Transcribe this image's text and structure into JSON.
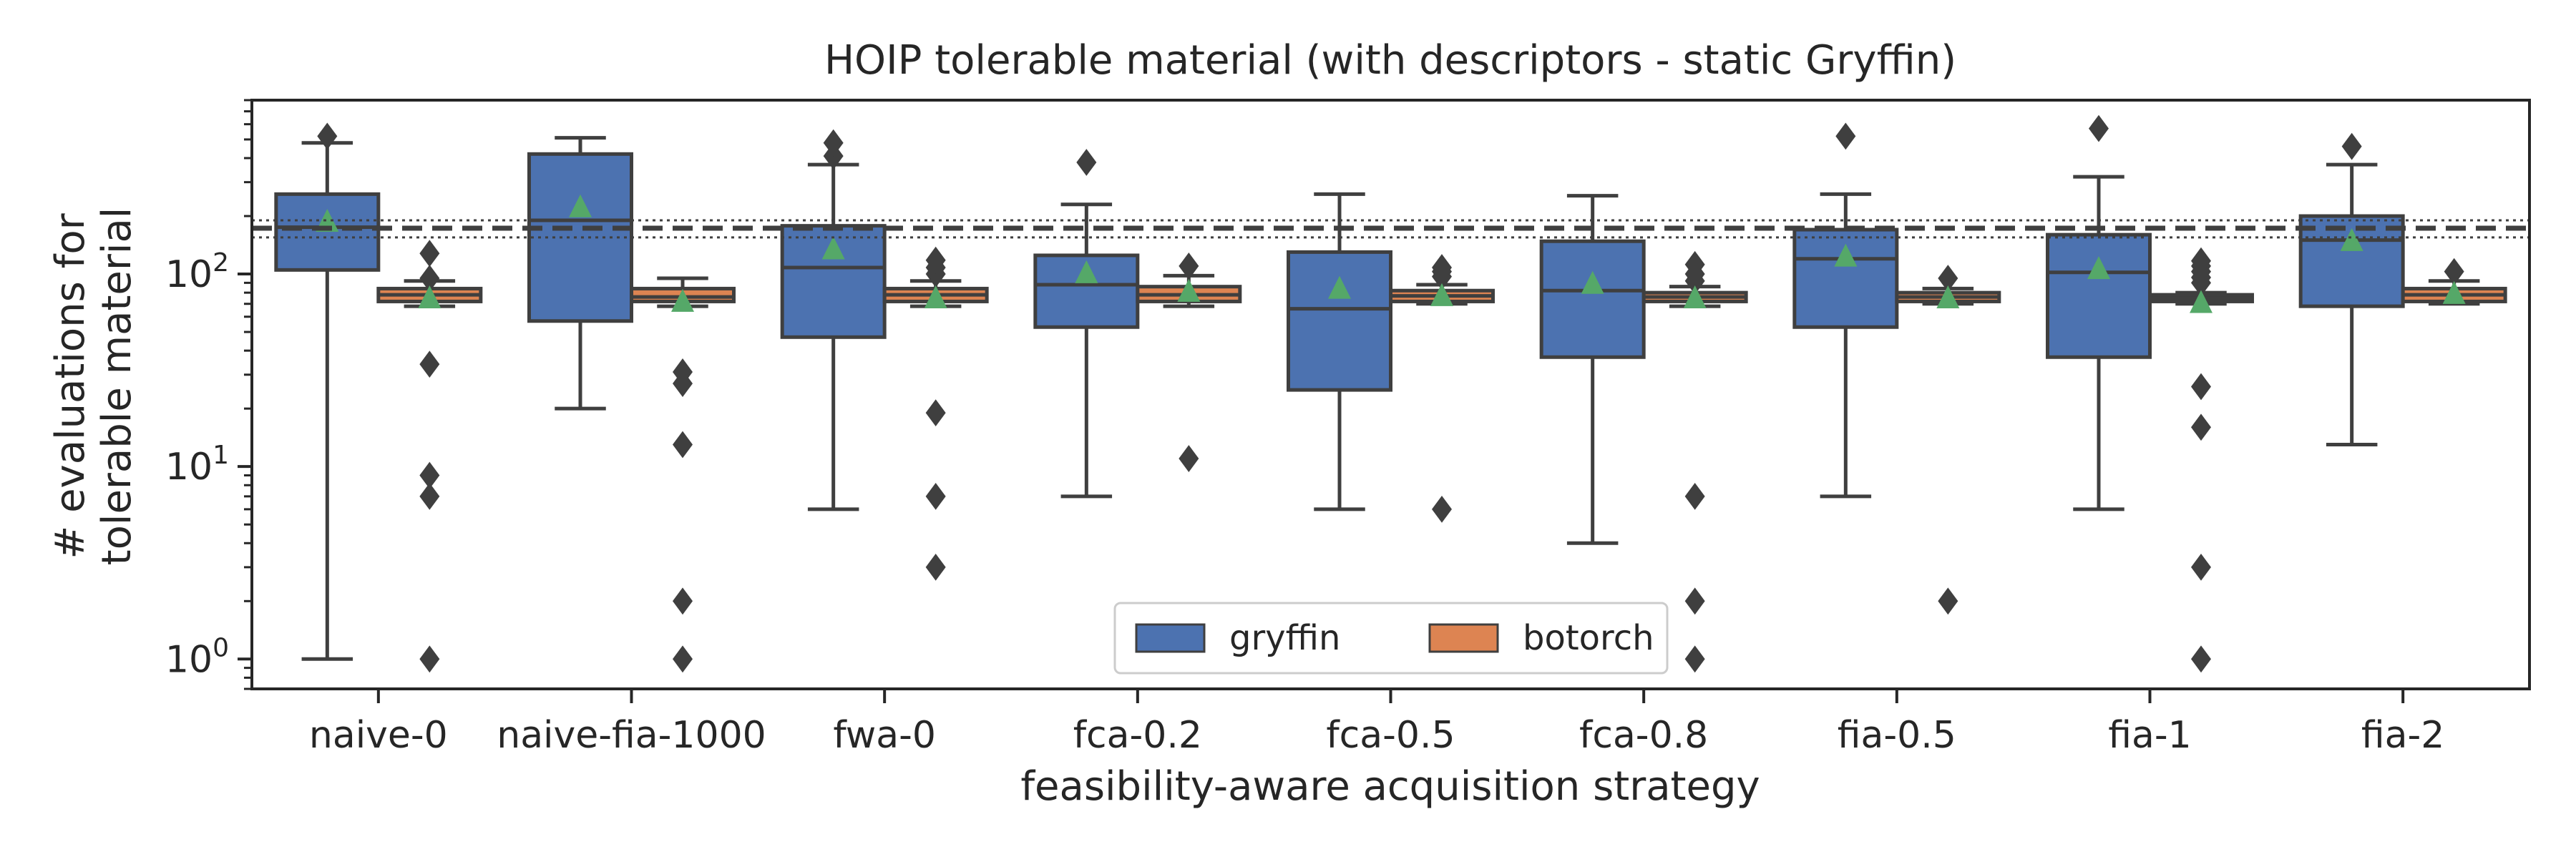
{
  "chart_data": {
    "type": "box",
    "title": "HOIP tolerable material (with descriptors - static Gryffin)",
    "xlabel": "feasibility-aware acquisition strategy",
    "ylabel": [
      "# evaluations for",
      "tolerable material"
    ],
    "yscale": "log",
    "ylim": [
      0.7,
      800
    ],
    "yticks": [
      {
        "value": 1,
        "base": "10",
        "exp": "0"
      },
      {
        "value": 10,
        "base": "10",
        "exp": "1"
      },
      {
        "value": 100,
        "base": "10",
        "exp": "2"
      }
    ],
    "categories": [
      "naive-0",
      "naive-fia-1000",
      "fwa-0",
      "fca-0.2",
      "fca-0.5",
      "fca-0.8",
      "fia-0.5",
      "fia-1",
      "fia-2"
    ],
    "series": [
      {
        "name": "gryffin",
        "color": "#4c72b0",
        "boxes": [
          {
            "q1": 105,
            "median": 175,
            "q3": 260,
            "whislo": 1,
            "whishi": 480,
            "mean": 185,
            "fliers": [
              520
            ]
          },
          {
            "q1": 57,
            "median": 190,
            "q3": 420,
            "whislo": 20,
            "whishi": 510,
            "mean": 220,
            "fliers": []
          },
          {
            "q1": 47,
            "median": 108,
            "q3": 178,
            "whislo": 6,
            "whishi": 370,
            "mean": 133,
            "fliers": [
              410,
              480
            ]
          },
          {
            "q1": 53,
            "median": 88,
            "q3": 125,
            "whislo": 7,
            "whishi": 230,
            "mean": 100,
            "fliers": [
              380
            ]
          },
          {
            "q1": 25,
            "median": 66,
            "q3": 130,
            "whislo": 6,
            "whishi": 260,
            "mean": 83,
            "fliers": []
          },
          {
            "q1": 37,
            "median": 82,
            "q3": 148,
            "whislo": 4,
            "whishi": 255,
            "mean": 88,
            "fliers": []
          },
          {
            "q1": 53,
            "median": 120,
            "q3": 170,
            "whislo": 7,
            "whishi": 260,
            "mean": 122,
            "fliers": [
              520
            ]
          },
          {
            "q1": 37,
            "median": 102,
            "q3": 160,
            "whislo": 6,
            "whishi": 320,
            "mean": 105,
            "fliers": [
              570
            ]
          },
          {
            "q1": 68,
            "median": 150,
            "q3": 200,
            "whislo": 13,
            "whishi": 370,
            "mean": 147,
            "fliers": [
              460
            ]
          }
        ]
      },
      {
        "name": "botorch",
        "color": "#dd8452",
        "boxes": [
          {
            "q1": 72,
            "median": 78,
            "q3": 84,
            "whislo": 68,
            "whishi": 92,
            "mean": 74,
            "fliers": [
              1,
              7,
              9,
              34,
              95,
              128
            ]
          },
          {
            "q1": 72,
            "median": 76,
            "q3": 84,
            "whislo": 68,
            "whishi": 95,
            "mean": 71,
            "fliers": [
              1,
              2,
              13,
              27,
              31
            ]
          },
          {
            "q1": 72,
            "median": 78,
            "q3": 84,
            "whislo": 68,
            "whishi": 92,
            "mean": 74,
            "fliers": [
              3,
              7,
              19,
              100,
              108,
              118
            ]
          },
          {
            "q1": 72,
            "median": 78,
            "q3": 86,
            "whislo": 68,
            "whishi": 98,
            "mean": 80,
            "fliers": [
              11,
              110
            ]
          },
          {
            "q1": 72,
            "median": 77,
            "q3": 82,
            "whislo": 70,
            "whishi": 88,
            "mean": 76,
            "fliers": [
              6,
              97,
              103,
              108
            ]
          },
          {
            "q1": 72,
            "median": 76,
            "q3": 80,
            "whislo": 68,
            "whishi": 86,
            "mean": 74,
            "fliers": [
              1,
              2,
              7,
              92,
              100,
              112
            ]
          },
          {
            "q1": 72,
            "median": 76,
            "q3": 80,
            "whislo": 70,
            "whishi": 84,
            "mean": 74,
            "fliers": [
              2,
              95
            ]
          },
          {
            "q1": 72,
            "median": 75,
            "q3": 78,
            "whislo": 70,
            "whishi": 80,
            "mean": 70,
            "fliers": [
              1,
              3,
              16,
              26,
              90,
              96,
              103,
              110,
              117
            ]
          },
          {
            "q1": 72,
            "median": 78,
            "q3": 84,
            "whislo": 70,
            "whishi": 92,
            "mean": 78,
            "fliers": [
              103
            ]
          }
        ]
      }
    ],
    "reference_lines": {
      "dashed": 173,
      "dotted": [
        155,
        190
      ]
    },
    "legend": {
      "position": "bottom-center",
      "entries": [
        "gryffin",
        "botorch"
      ]
    },
    "mean_marker_color": "#55a868",
    "grid": false
  }
}
